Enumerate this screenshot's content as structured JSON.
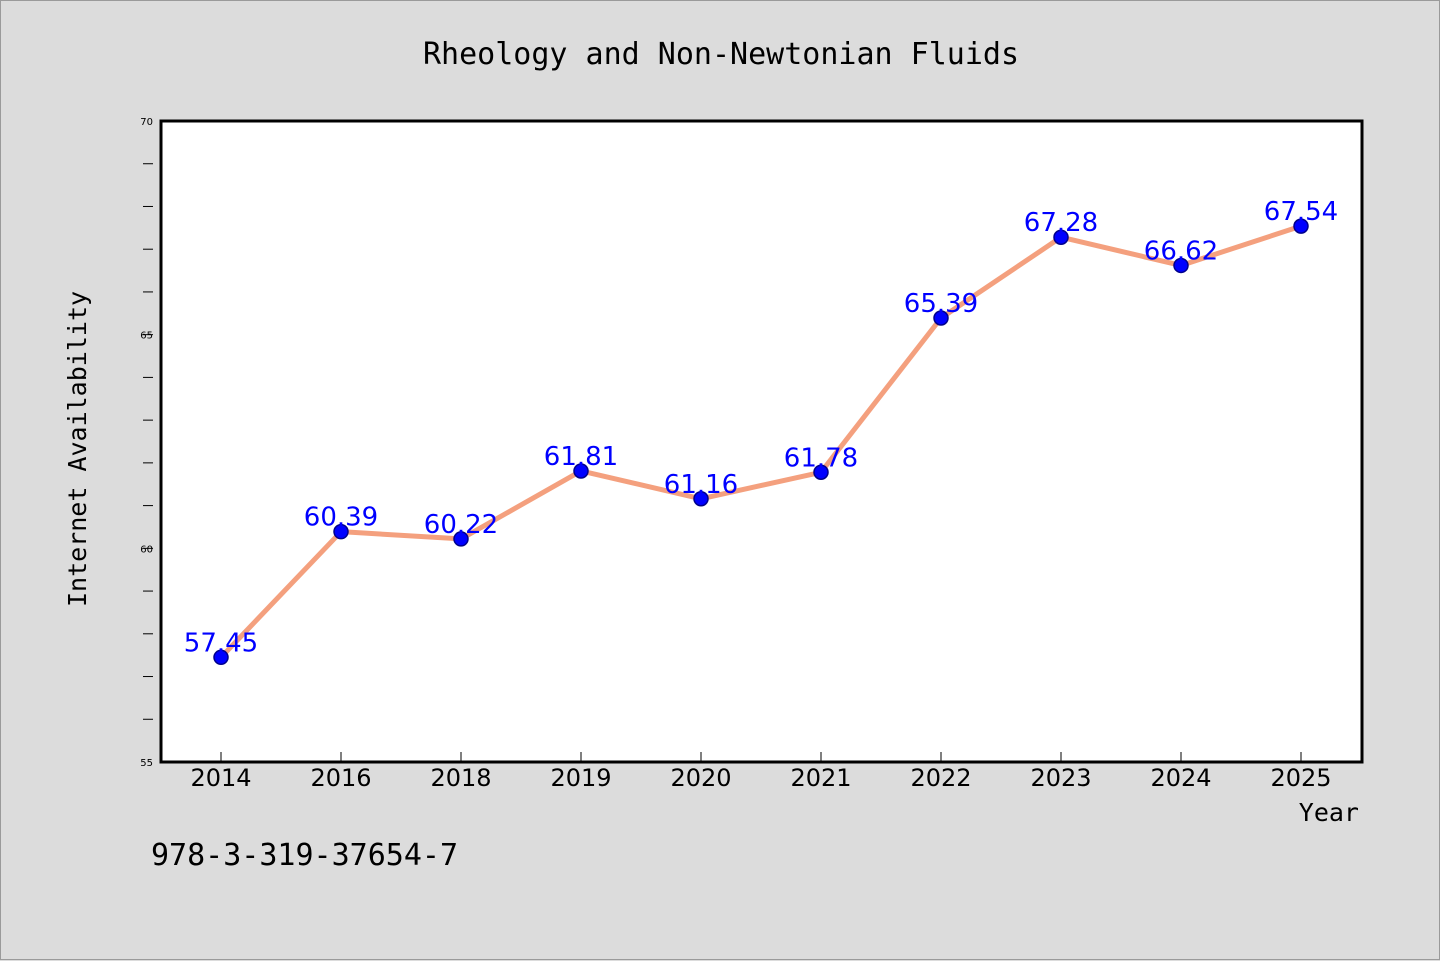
{
  "chart_data": {
    "type": "line",
    "title": "Rheology and Non-Newtonian Fluids",
    "xlabel": "Year",
    "ylabel": "Internet Availability",
    "categories": [
      "2014",
      "2016",
      "2018",
      "2019",
      "2020",
      "2021",
      "2022",
      "2023",
      "2024",
      "2025"
    ],
    "series": [
      {
        "values": [
          57.45,
          60.39,
          60.22,
          61.81,
          61.16,
          61.78,
          65.39,
          67.28,
          66.62,
          67.54
        ]
      }
    ],
    "data_labels": [
      "57.45",
      "60.39",
      "60.22",
      "61.81",
      "61.16",
      "61.78",
      "65.39",
      "67.28",
      "66.62",
      "67.54"
    ],
    "ylim": [
      55,
      70
    ],
    "yticks": [
      "55",
      "60",
      "65",
      "70"
    ],
    "grid": false,
    "legend": "none",
    "colors": {
      "line": "#f4a07e",
      "marker": "#0000ff",
      "label": "#0000ff"
    }
  },
  "footer": {
    "isbn": "978-3-319-37654-7"
  }
}
